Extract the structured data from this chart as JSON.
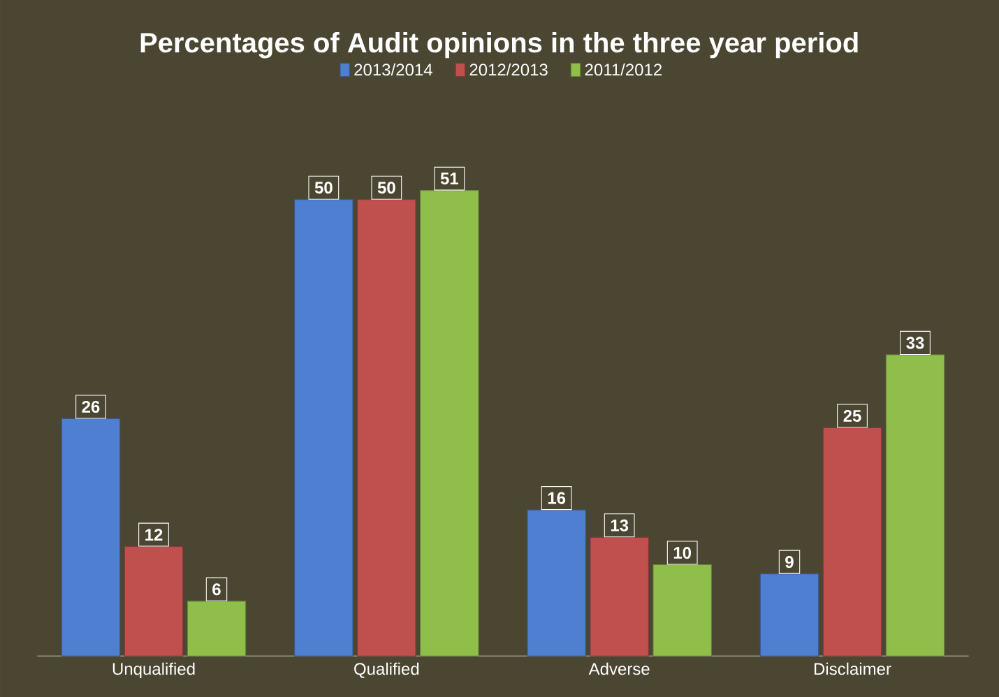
{
  "chart_data": {
    "type": "bar",
    "title": "Percentages of Audit opinions in the three year period",
    "categories": [
      "Unqualified",
      "Qualified",
      "Adverse",
      "Disclaimer"
    ],
    "series": [
      {
        "name": "2013/2014",
        "color": "#4f7fd0",
        "values": [
          26,
          50,
          16,
          9
        ]
      },
      {
        "name": "2012/2013",
        "color": "#c0504d",
        "values": [
          12,
          50,
          13,
          25
        ]
      },
      {
        "name": "2011/2012",
        "color": "#8fbf4a",
        "values": [
          6,
          51,
          10,
          33
        ]
      }
    ],
    "data_labels": true,
    "legend": "top"
  }
}
